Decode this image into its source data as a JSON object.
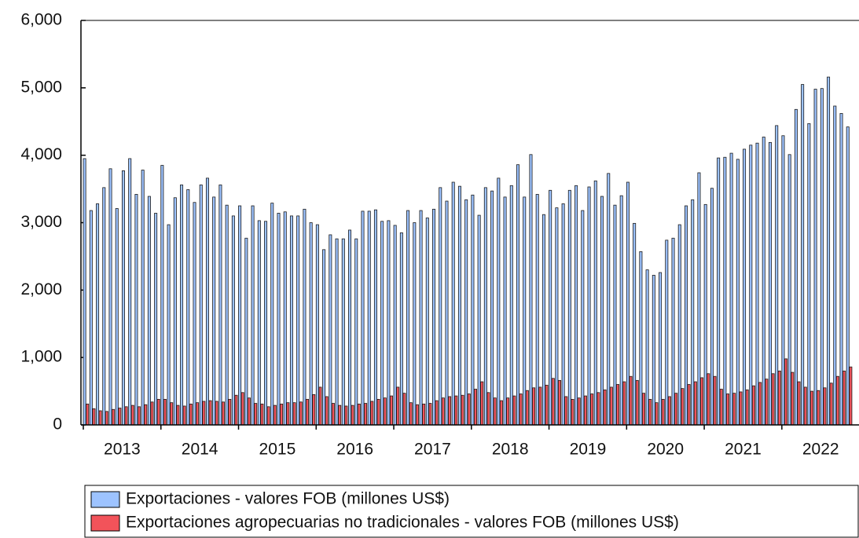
{
  "chart_data": {
    "type": "bar",
    "categories": [
      null,
      null,
      null,
      null,
      null,
      null,
      "2013",
      null,
      null,
      null,
      null,
      null,
      null,
      null,
      null,
      null,
      null,
      null,
      "2014",
      null,
      null,
      null,
      null,
      null,
      null,
      null,
      null,
      null,
      null,
      null,
      "2015",
      null,
      null,
      null,
      null,
      null,
      null,
      null,
      null,
      null,
      null,
      null,
      "2016",
      null,
      null,
      null,
      null,
      null,
      null,
      null,
      null,
      null,
      null,
      null,
      "2017",
      null,
      null,
      null,
      null,
      null,
      null,
      null,
      null,
      null,
      null,
      null,
      "2018",
      null,
      null,
      null,
      null,
      null,
      null,
      null,
      null,
      null,
      null,
      null,
      "2019",
      null,
      null,
      null,
      null,
      null,
      null,
      null,
      null,
      null,
      null,
      null,
      "2020",
      null,
      null,
      null,
      null,
      null,
      null,
      null,
      null,
      null,
      null,
      null,
      "2021",
      null,
      null,
      null,
      null,
      null,
      null,
      null,
      null,
      null,
      null,
      null,
      "2022",
      null,
      null,
      null,
      null
    ],
    "series": [
      {
        "name": "Exportaciones - valores FOB (millones US$)",
        "color": "#9dc3ff",
        "values": [
          3950,
          3180,
          3280,
          3520,
          3800,
          3210,
          3770,
          3950,
          3420,
          3780,
          3390,
          3140,
          3850,
          2970,
          3370,
          3560,
          3490,
          3300,
          3560,
          3660,
          3380,
          3560,
          3260,
          3100,
          3250,
          2770,
          3250,
          3030,
          3020,
          3290,
          3140,
          3160,
          3100,
          3100,
          3200,
          3000,
          2970,
          2600,
          2820,
          2760,
          2760,
          2890,
          2760,
          3170,
          3170,
          3190,
          3020,
          3030,
          2960,
          2850,
          3180,
          3000,
          3180,
          3070,
          3200,
          3520,
          3320,
          3600,
          3540,
          3340,
          3410,
          3110,
          3520,
          3470,
          3660,
          3380,
          3550,
          3860,
          3380,
          4010,
          3420,
          3120,
          3480,
          3220,
          3280,
          3480,
          3550,
          3180,
          3530,
          3620,
          3390,
          3730,
          3260,
          3400,
          3600,
          2990,
          2570,
          2300,
          2220,
          2260,
          2740,
          2770,
          2970,
          3250,
          3340,
          3740,
          3270,
          3510,
          3960,
          3970,
          4030,
          3940,
          4090,
          4150,
          4180,
          4270,
          4190,
          4440,
          4290,
          4010,
          4680,
          5050,
          4470,
          4980,
          4990,
          5160,
          4730,
          4620,
          4420
        ]
      },
      {
        "name": "Exportaciones agropecuarias no tradicionales - valores FOB (millones US$)",
        "color": "#f2535a",
        "values": [
          310,
          240,
          210,
          200,
          230,
          250,
          270,
          290,
          270,
          300,
          340,
          380,
          380,
          330,
          290,
          280,
          310,
          330,
          350,
          360,
          350,
          340,
          380,
          440,
          480,
          400,
          320,
          310,
          270,
          290,
          310,
          330,
          330,
          340,
          380,
          450,
          560,
          420,
          320,
          290,
          280,
          290,
          310,
          320,
          350,
          380,
          400,
          430,
          560,
          470,
          330,
          300,
          310,
          320,
          360,
          400,
          420,
          430,
          440,
          460,
          530,
          640,
          480,
          400,
          360,
          400,
          430,
          460,
          510,
          550,
          560,
          590,
          690,
          660,
          420,
          380,
          400,
          430,
          460,
          480,
          520,
          560,
          600,
          640,
          720,
          660,
          470,
          380,
          330,
          380,
          420,
          470,
          540,
          600,
          640,
          700,
          760,
          720,
          530,
          460,
          470,
          490,
          520,
          580,
          630,
          680,
          760,
          800,
          980,
          780,
          640,
          560,
          500,
          510,
          550,
          620,
          720,
          800,
          860
        ]
      }
    ],
    "ylim": [
      0,
      6000
    ],
    "yticks": [
      {
        "value": 0,
        "label": "0"
      },
      {
        "value": 1000,
        "label": "1,000"
      },
      {
        "value": 2000,
        "label": "2,000"
      },
      {
        "value": 3000,
        "label": "3,000"
      },
      {
        "value": 4000,
        "label": "4,000"
      },
      {
        "value": 5000,
        "label": "5,000"
      },
      {
        "value": 6000,
        "label": "6,000"
      }
    ],
    "grid": false
  }
}
